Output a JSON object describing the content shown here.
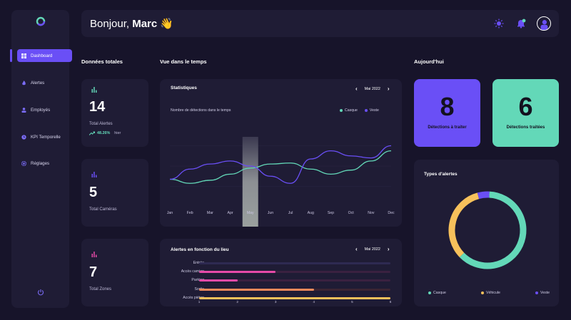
{
  "colors": {
    "accent": "#6a4ff6",
    "teal": "#63d8b8",
    "yellow": "#f7c15b",
    "pink": "#e64aa8",
    "orange": "#f2895a",
    "bg": "#17142a",
    "card": "#1f1c35"
  },
  "sidebar": {
    "logo_icon": "logo-icon",
    "items": [
      {
        "label": "Dashboard",
        "icon": "dashboard-icon",
        "active": true
      },
      {
        "label": "Alertes",
        "icon": "fire-icon",
        "active": false
      },
      {
        "label": "Employés",
        "icon": "users-icon",
        "active": false
      },
      {
        "label": "KPI Temporelle",
        "icon": "clock-icon",
        "active": false
      },
      {
        "label": "Réglages",
        "icon": "gear-icon",
        "active": false
      }
    ],
    "logout_icon": "power-icon"
  },
  "header": {
    "greeting": "Bonjour,",
    "name": "Marc",
    "wave": "👋",
    "icons": [
      "sun-icon",
      "bell-icon",
      "avatar"
    ]
  },
  "totals": {
    "title": "Données totales",
    "cards": [
      {
        "value": "14",
        "label": "Total Alertes",
        "trend": "48.26%",
        "trend_label": "hier"
      },
      {
        "value": "5",
        "label": "Total Caméras"
      },
      {
        "value": "7",
        "label": "Total Zones"
      }
    ]
  },
  "timeline": {
    "title": "Vue dans le temps",
    "stats_title": "Statistiques",
    "period": "Mai 2022",
    "subtitle": "Nombre de détections  dans le temps",
    "legend": [
      "Casque",
      "Veste"
    ],
    "months": [
      "Jan",
      "Feb",
      "Mar",
      "Apr",
      "May",
      "Jun",
      "Jul",
      "Aug",
      "Sep",
      "Oct",
      "Nov",
      "Dec"
    ],
    "highlight": "May"
  },
  "chart_data": [
    {
      "type": "line",
      "title": "Statistiques",
      "subtitle": "Nombre de détections  dans le temps",
      "x": [
        "Jan",
        "Feb",
        "Mar",
        "Apr",
        "May",
        "Jun",
        "Jul",
        "Aug",
        "Sep",
        "Oct",
        "Nov",
        "Dec"
      ],
      "series": [
        {
          "name": "Casque",
          "values": [
            2.7,
            2.3,
            2.6,
            3.2,
            3.8,
            4.2,
            4.3,
            3.7,
            3.2,
            3.6,
            4.5,
            5.5
          ]
        },
        {
          "name": "Veste",
          "values": [
            2.7,
            3.7,
            4.2,
            4.5,
            4.0,
            3.0,
            2.3,
            4.7,
            5.5,
            5.0,
            4.8,
            6.0
          ]
        }
      ],
      "ylim": [
        0,
        8
      ],
      "grid": true,
      "legend": "top-right"
    },
    {
      "type": "bar",
      "orientation": "horizontal",
      "title": "Alertes en fonction du lieu",
      "categories": [
        "Entrée",
        "Accès camion",
        "Parking",
        "Sortie",
        "Accès piéton"
      ],
      "values": [
        1,
        3,
        2,
        4,
        6
      ],
      "xlim": [
        1,
        6
      ],
      "xticks": [
        "1",
        "2",
        "3",
        "4",
        "5",
        "6"
      ]
    },
    {
      "type": "pie",
      "title": "Types d'alertes",
      "categories": [
        "Casque",
        "Véhicule",
        "Veste"
      ],
      "values": [
        62,
        33,
        5
      ],
      "legend": "bottom"
    }
  ],
  "location": {
    "title": "Alertes en fonction du lieu",
    "period": "Mai 2022"
  },
  "today": {
    "title": "Aujourd'hui",
    "pending_value": "8",
    "pending_label": "Détections à traiter",
    "done_value": "6",
    "done_label": "Détections traitées"
  },
  "types": {
    "title": "Types d'alertes",
    "legend": [
      "Casque",
      "Véhicule",
      "Veste"
    ]
  }
}
